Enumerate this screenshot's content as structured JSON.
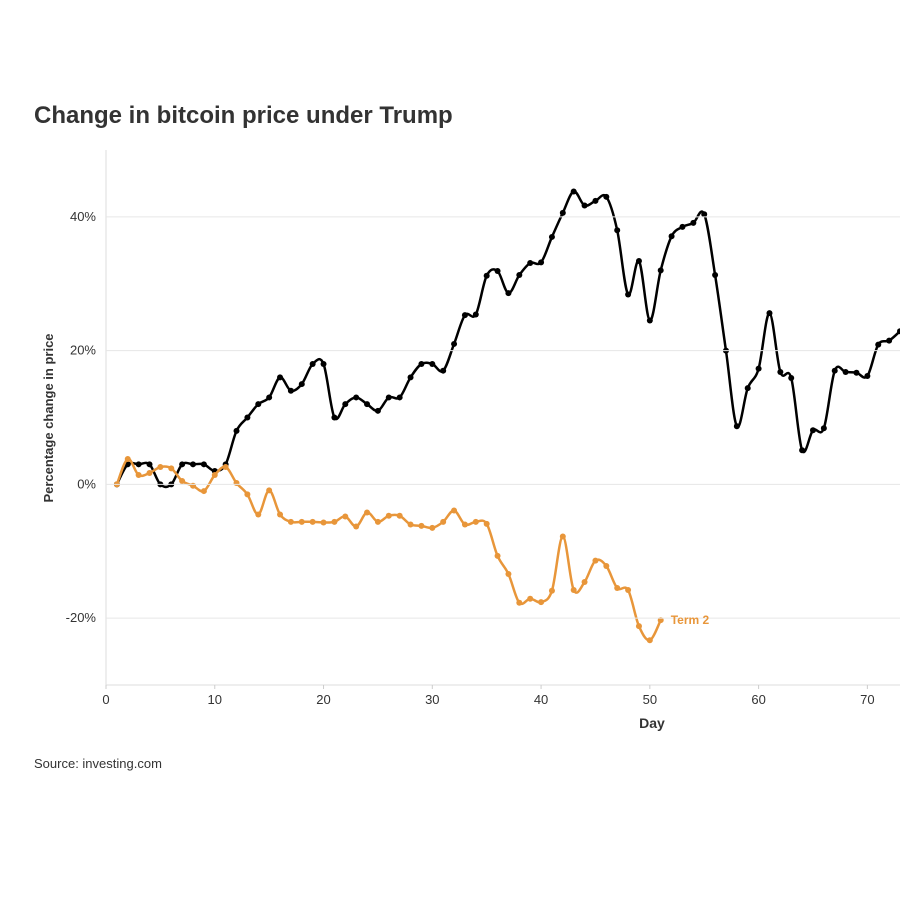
{
  "chart_data": {
    "type": "line",
    "title": "Change in bitcoin price under Trump",
    "y_label": "Percentage change in price",
    "x_label": "Day",
    "source": "Source: investing.com",
    "xlim": [
      0,
      73
    ],
    "xticks": [
      0,
      10,
      20,
      30,
      40,
      50,
      60,
      70
    ],
    "ylim": [
      -30,
      50
    ],
    "yticks": [
      {
        "value": -20,
        "label": "-20%"
      },
      {
        "value": 0,
        "label": "0%"
      },
      {
        "value": 20,
        "label": "20%"
      },
      {
        "value": 40,
        "label": "40%"
      }
    ],
    "grid": true,
    "series": [
      {
        "color": "#000000",
        "x": [
          1,
          2,
          3,
          4,
          5,
          6,
          7,
          8,
          9,
          10,
          11,
          12,
          13,
          14,
          15,
          16,
          17,
          18,
          19,
          20,
          21,
          22,
          23,
          24,
          25,
          26,
          27,
          28,
          29,
          30,
          31,
          32,
          33,
          34,
          35,
          36,
          37,
          38,
          39,
          40,
          41,
          42,
          43,
          44,
          45,
          46,
          47,
          48,
          49,
          50,
          51,
          52,
          53,
          54,
          55,
          56,
          57,
          58,
          59,
          60,
          61,
          62,
          63,
          64,
          65,
          66,
          67,
          68,
          69,
          70,
          71,
          72,
          73
        ],
        "values": [
          0,
          3,
          3,
          3,
          0,
          0,
          3,
          3,
          3,
          2,
          3,
          8,
          10,
          12,
          13,
          16,
          14,
          15,
          18,
          18,
          10,
          12,
          13,
          12,
          11,
          13,
          13,
          16,
          18,
          18,
          17,
          21,
          25.3,
          25.4,
          31.2,
          31.9,
          28.6,
          31.3,
          33.1,
          33.2,
          37,
          40.6,
          43.8,
          41.7,
          42.4,
          43,
          38,
          28.4,
          33.4,
          24.5,
          32,
          37.1,
          38.5,
          39.1,
          40.4,
          31.3,
          20,
          8.7,
          14.4,
          17.3,
          25.6,
          16.8,
          15.9,
          5.1,
          8.1,
          8.4,
          17,
          16.8,
          16.7,
          16.2,
          20.9,
          21.5,
          22.9
        ]
      },
      {
        "name": "Term 2",
        "color": "#e8963a",
        "x": [
          1,
          2,
          3,
          4,
          5,
          6,
          7,
          8,
          9,
          10,
          11,
          12,
          13,
          14,
          15,
          16,
          17,
          18,
          19,
          20,
          21,
          22,
          23,
          24,
          25,
          26,
          27,
          28,
          29,
          30,
          31,
          32,
          33,
          34,
          35,
          36,
          37,
          38,
          39,
          40,
          41,
          42,
          43,
          44,
          45,
          46,
          47,
          48,
          49,
          50,
          51
        ],
        "values": [
          0,
          3.8,
          1.4,
          1.7,
          2.6,
          2.4,
          0.5,
          -0.2,
          -1,
          1.4,
          2.6,
          0.2,
          -1.5,
          -4.5,
          -0.9,
          -4.5,
          -5.6,
          -5.6,
          -5.6,
          -5.7,
          -5.6,
          -4.8,
          -6.3,
          -4.2,
          -5.6,
          -4.7,
          -4.7,
          -6,
          -6.2,
          -6.5,
          -5.6,
          -3.9,
          -6,
          -5.6,
          -5.9,
          -10.7,
          -13.4,
          -17.7,
          -17.1,
          -17.6,
          -15.9,
          -7.8,
          -15.8,
          -14.6,
          -11.4,
          -12.2,
          -15.5,
          -15.8,
          -21.2,
          -23.3,
          -20.3
        ]
      }
    ]
  }
}
